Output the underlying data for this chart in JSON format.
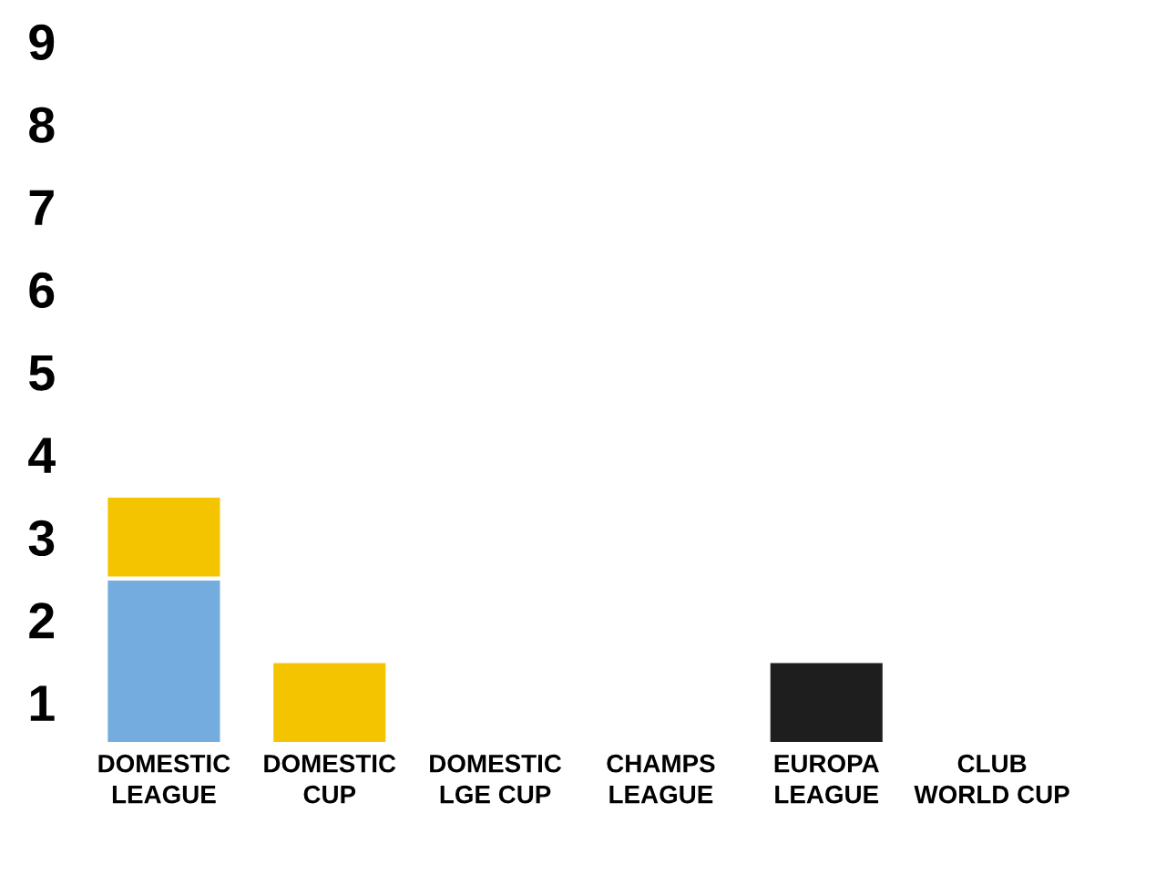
{
  "chart_data": {
    "type": "bar",
    "stacked": true,
    "categories": [
      "DOMESTIC\nLEAGUE",
      "DOMESTIC\nCUP",
      "DOMESTIC\nLGE CUP",
      "CHAMPS\nLEAGUE",
      "EUROPA\nLEAGUE",
      "CLUB\nWORLD CUP"
    ],
    "series": [
      {
        "color": "#74acdf",
        "values": [
          2,
          null,
          null,
          null,
          null,
          null
        ]
      },
      {
        "color": "#f5c400",
        "values": [
          1,
          1,
          null,
          null,
          null,
          null
        ]
      },
      {
        "color": "#1e1e1e",
        "values": [
          null,
          null,
          null,
          null,
          1,
          null
        ]
      }
    ],
    "ylim": [
      0,
      8.5
    ],
    "yticks": [
      {
        "value": 0.5,
        "label": "1"
      },
      {
        "value": 1.5,
        "label": "2"
      },
      {
        "value": 2.5,
        "label": "3"
      },
      {
        "value": 3.5,
        "label": "4"
      },
      {
        "value": 4.5,
        "label": "5"
      },
      {
        "value": 5.5,
        "label": "6"
      },
      {
        "value": 6.5,
        "label": "7"
      },
      {
        "value": 7.5,
        "label": "8"
      },
      {
        "value": 8.5,
        "label": "9"
      }
    ],
    "grid": false
  }
}
